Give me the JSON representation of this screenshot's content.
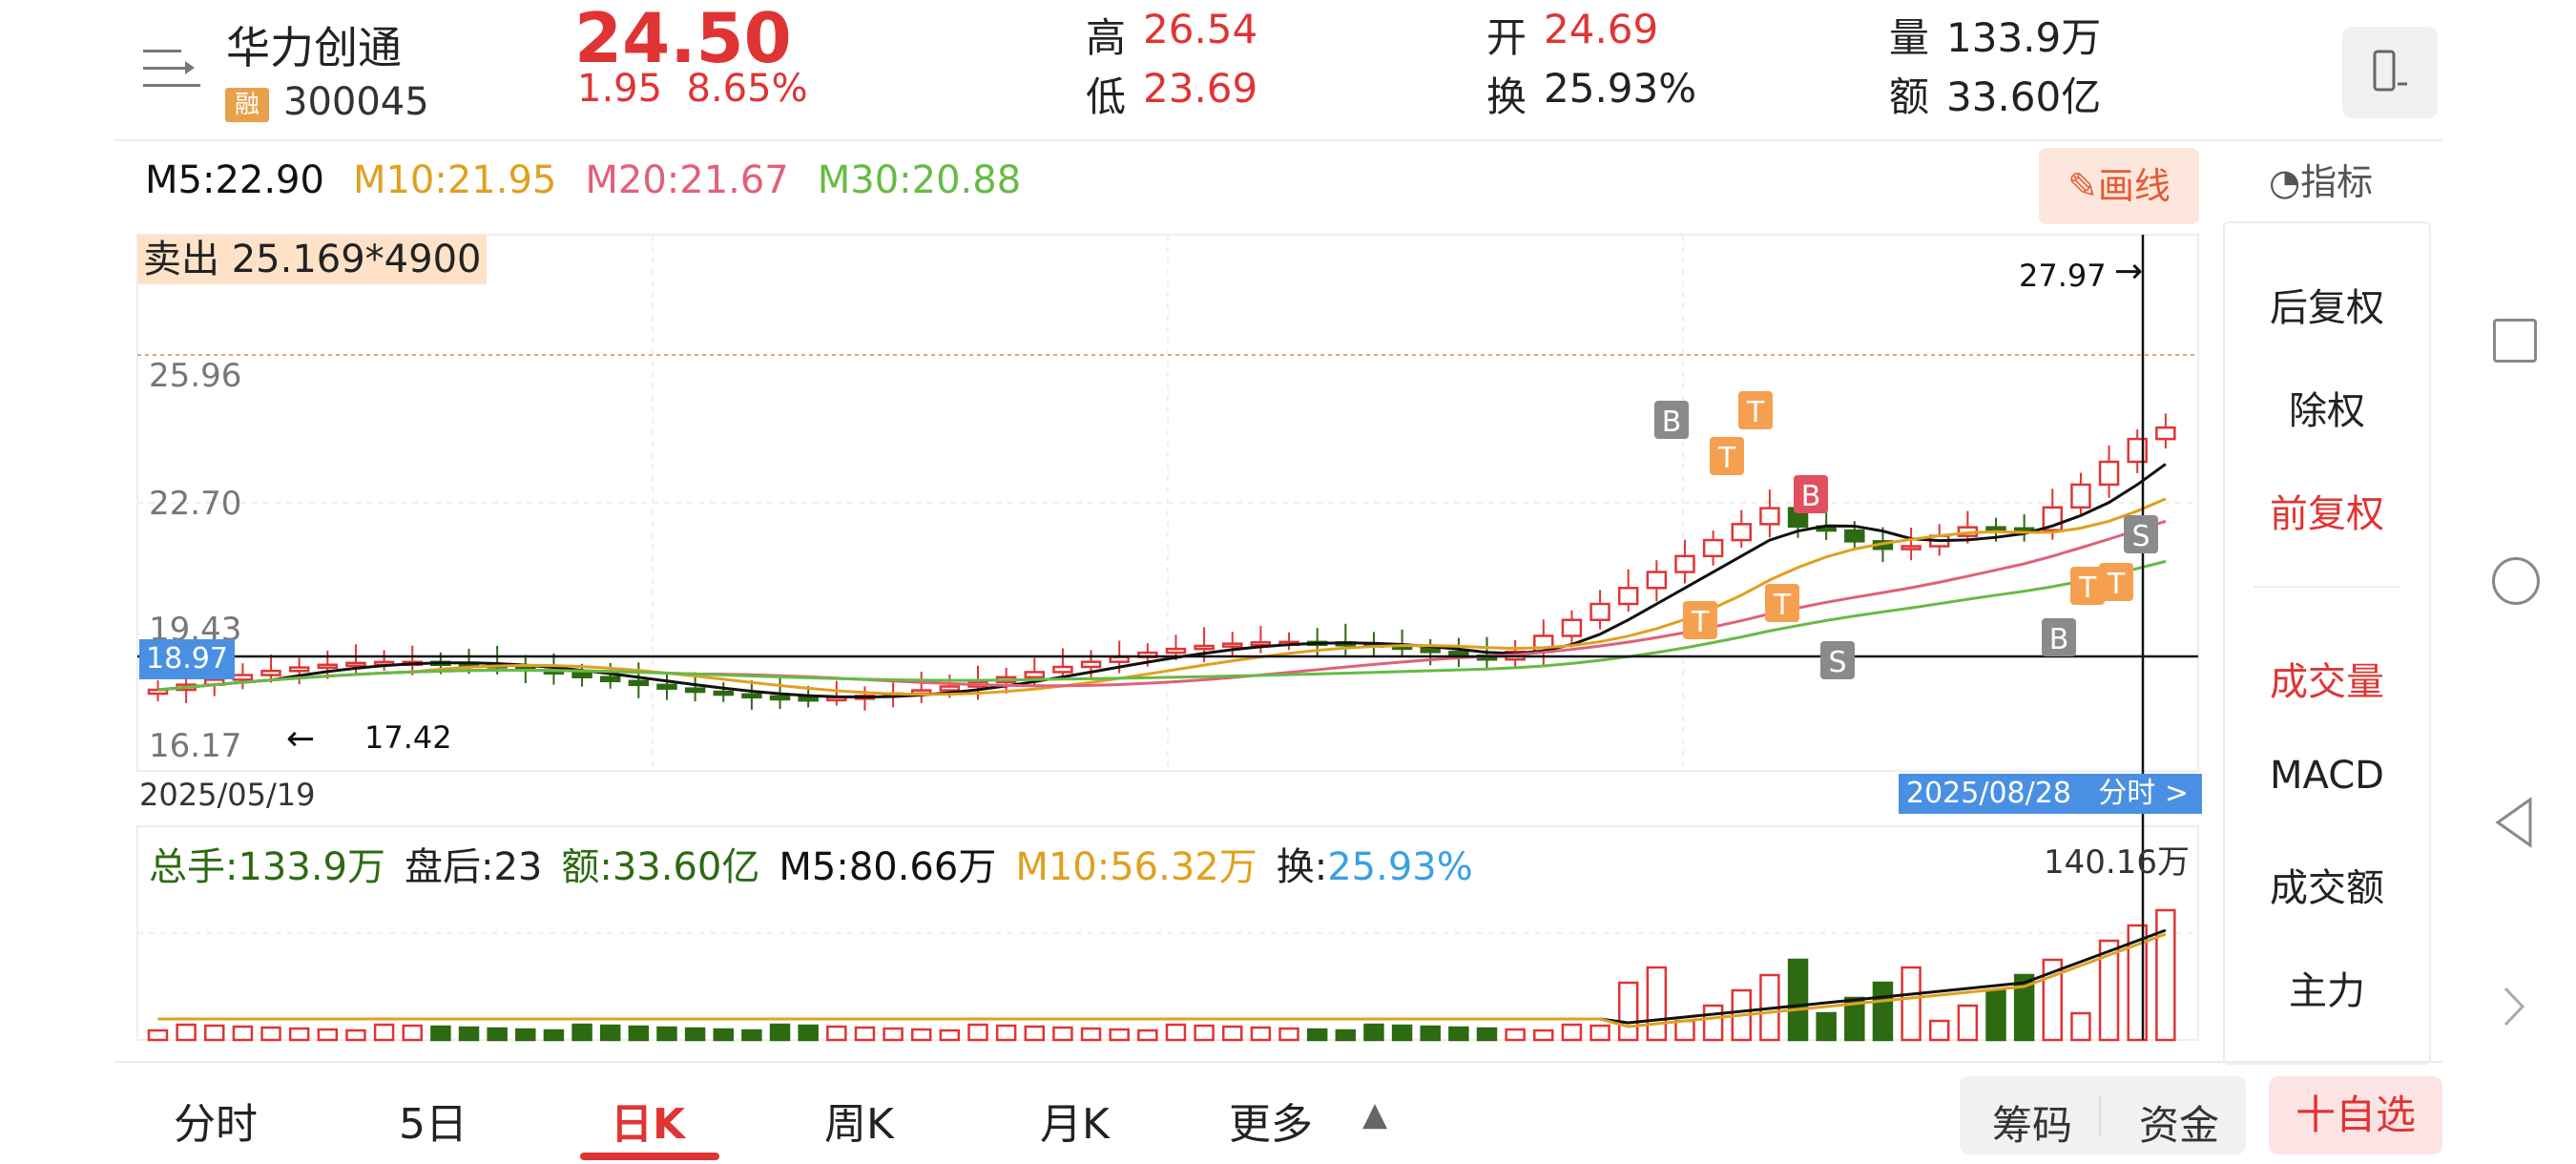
{
  "header": {
    "stock_name": "华力创通",
    "badge": "融",
    "stock_code": "300045",
    "price": "24.50",
    "change": "1.95",
    "change_pct": "8.65%",
    "stats": {
      "high_label": "高",
      "high": "26.54",
      "low_label": "低",
      "low": "23.69",
      "open_label": "开",
      "open": "24.69",
      "turnover_label": "换",
      "turnover": "25.93%",
      "volume_label": "量",
      "volume": "133.9万",
      "amount_label": "额",
      "amount": "33.60亿"
    }
  },
  "ma_legend": {
    "m5": "M5:22.90",
    "m10": "M10:21.95",
    "m20": "M20:21.67",
    "m30": "M30:20.88"
  },
  "draw_button": "画线",
  "indicator_label": "指标",
  "side_panel": {
    "items": [
      "后复权",
      "除权",
      "前复权",
      "成交量",
      "MACD",
      "成交额",
      "主力"
    ]
  },
  "sell_label": "卖出 25.169*4900",
  "y_axis": [
    "25.96",
    "22.70",
    "19.43",
    "16.17"
  ],
  "high_marker": "27.97",
  "low_marker": "17.42",
  "crosshair_price": "18.97",
  "start_date": "2025/05/19",
  "end_date_tag": "2025/08/28",
  "fenshi_link": "分时 >",
  "volume_row": {
    "total": "总手:133.9万",
    "after_hours": "盘后:23",
    "amount": "额:33.60亿",
    "m5": "M5:80.66万",
    "m10": "M10:56.32万",
    "turnover_label": "换:",
    "turnover": "25.93%"
  },
  "volume_max": "140.16万",
  "tabs": [
    "分时",
    "5日",
    "日K",
    "周K",
    "月K",
    "更多"
  ],
  "bottom_buttons": {
    "chips": "筹码",
    "funds": "资金",
    "favorite": "十自选"
  },
  "colors": {
    "up": "#e03434",
    "down": "#2d6a12",
    "ma5": "#111111",
    "ma10": "#e0a020",
    "ma20": "#e0607a",
    "ma30": "#66bb44",
    "accent_blue": "#4a90e2"
  }
}
